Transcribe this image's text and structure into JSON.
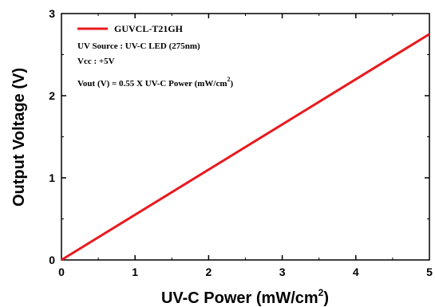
{
  "chart_data": {
    "type": "line",
    "x": [
      0,
      5
    ],
    "series": [
      {
        "name": "GUVCL-T21GH",
        "values": [
          0,
          2.75
        ],
        "color": "#e8191e"
      }
    ],
    "xlabel_main": "UV-C Power (mW/cm",
    "xlabel_sup": "2",
    "xlabel_end": ")",
    "ylabel": "Output Voltage (V)",
    "xlim": [
      0,
      5
    ],
    "ylim": [
      0,
      3
    ],
    "xticks": [
      "0",
      "1",
      "2",
      "3",
      "4",
      "5"
    ],
    "yticks": [
      "0",
      "1",
      "2",
      "3"
    ],
    "grid": false,
    "legend_position": "top-left",
    "annotations": {
      "source": "UV Source : UV-C  LED (275nm)",
      "vcc": "Vcc : +5V",
      "formula_main": "Vout (V) = 0.55 X UV-C Power (mW/cm",
      "formula_sup": "2",
      "formula_end": ")"
    }
  }
}
